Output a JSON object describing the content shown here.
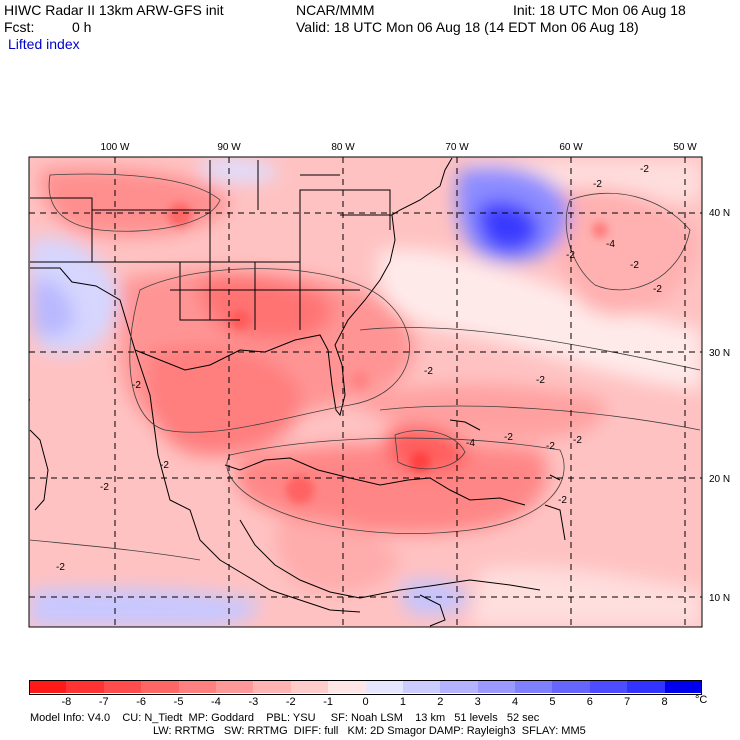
{
  "header": {
    "model": "HIWC Radar II 13km ARW-GFS init",
    "org": "NCAR/MMM",
    "init": "Init: 18 UTC Mon 06 Aug 18",
    "fcst_label": "Fcst:",
    "fcst_value": "0 h",
    "valid": "Valid: 18 UTC Mon 06 Aug 18 (14 EDT Mon 06 Aug 18)",
    "field": "Lifted index"
  },
  "map": {
    "lon_labels": [
      "100 W",
      "90 W",
      "80 W",
      "70 W",
      "60 W",
      "50 W"
    ],
    "lat_labels": [
      "40 N",
      "30 N",
      "20 N",
      "10 N"
    ],
    "contour_labels": [
      "-2",
      "-2",
      "-2",
      "-2",
      "-2",
      "-4",
      "-2",
      "-2",
      "-2",
      "-4",
      "-2",
      "-2",
      "-2",
      "-2",
      "-2",
      "-2",
      "-2"
    ]
  },
  "colorbar": {
    "unit": "°C",
    "labels": [
      "-8",
      "-7",
      "-6",
      "-5",
      "-4",
      "-3",
      "-2",
      "-1",
      "0",
      "1",
      "2",
      "3",
      "4",
      "5",
      "6",
      "7",
      "8"
    ],
    "colors": [
      "#ff1a1a",
      "#ff3333",
      "#ff4d4d",
      "#ff6666",
      "#ff8080",
      "#ff9999",
      "#ffb3b3",
      "#ffcccc",
      "#ffe6e6",
      "#e6e6ff",
      "#ccccff",
      "#b3b3ff",
      "#9999ff",
      "#8080ff",
      "#6666ff",
      "#4d4dff",
      "#3333ff",
      "#0000ee"
    ]
  },
  "footer": {
    "line1": "Model Info: V4.0    CU: N_Tiedt  MP: Goddard    PBL: YSU     SF: Noah LSM    13 km   51 levels   52 sec",
    "line2": "LW: RRTMG   SW: RRTMG  DIFF: full   KM: 2D Smagor DAMP: Rayleigh3  SFLAY: MM5"
  }
}
